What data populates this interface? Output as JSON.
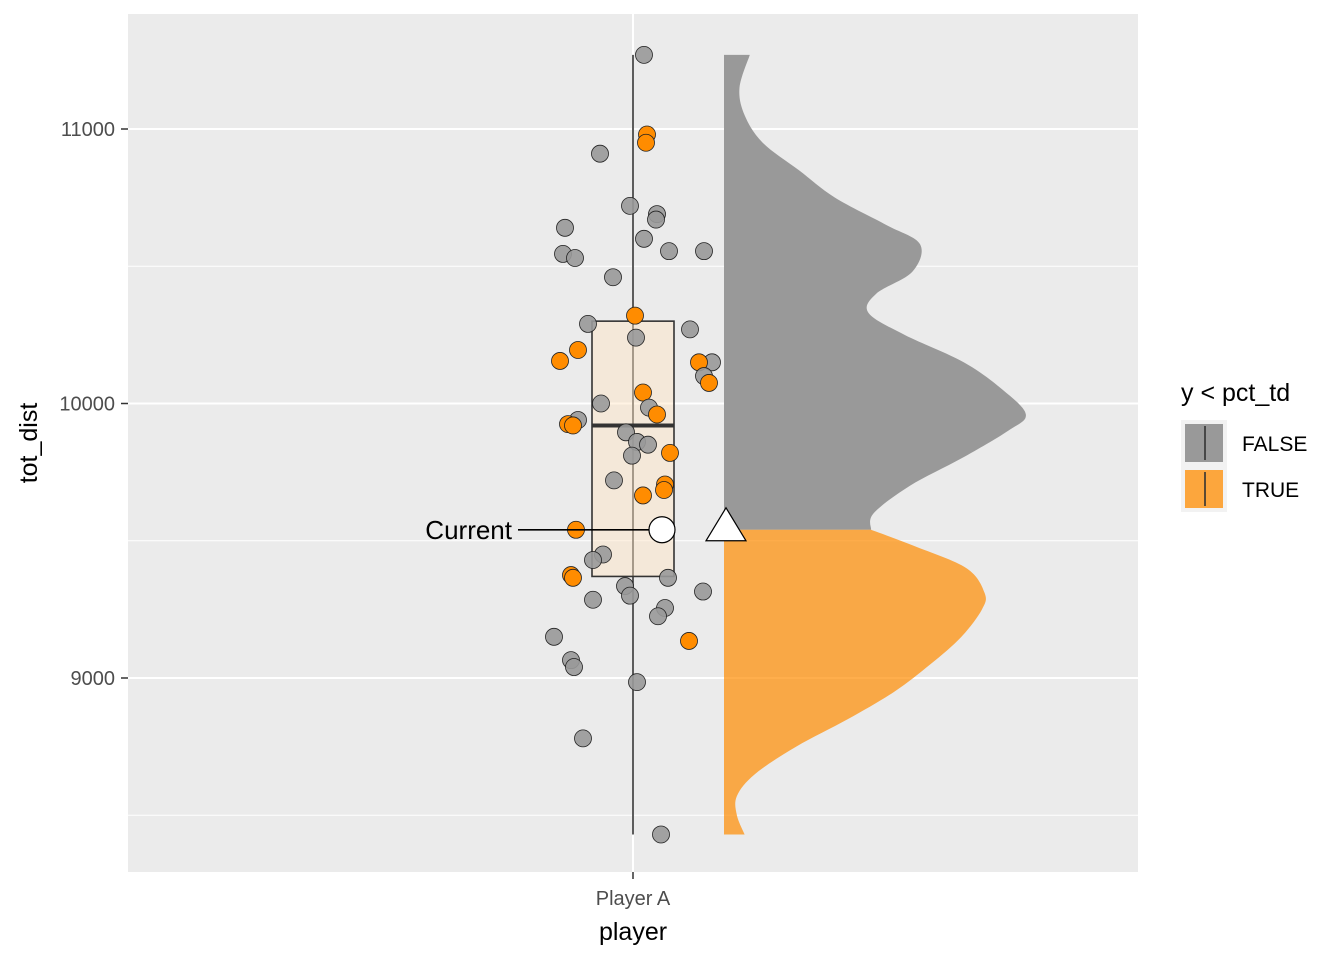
{
  "chart_data": {
    "type": "raincloud",
    "title": "",
    "xlabel": "player",
    "ylabel": "tot_dist",
    "categories": [
      "Player A"
    ],
    "ylim": [
      8300,
      11400
    ],
    "yticks": [
      9000,
      10000,
      11000
    ],
    "y_minor_gridlines": [
      8500,
      9500,
      10500
    ],
    "grid": true,
    "legend": {
      "title": "y < pct_td",
      "position": "right",
      "entries": [
        {
          "label": "FALSE",
          "color": "#999999"
        },
        {
          "label": "TRUE",
          "color": "#ff8c00"
        }
      ]
    },
    "boxplot": {
      "min": 8430,
      "q1": 9370,
      "median": 9920,
      "q3": 10300,
      "max": 11270,
      "fill": "#ffe4c4"
    },
    "current": {
      "label": "Current",
      "value": 9540
    },
    "threshold": 9540,
    "density": {
      "y": [
        8430,
        8500,
        8570,
        8650,
        8750,
        8850,
        8950,
        9050,
        9150,
        9250,
        9310,
        9400,
        9480,
        9540,
        9600,
        9700,
        9800,
        9900,
        9960,
        10050,
        10150,
        10250,
        10330,
        10400,
        10480,
        10580,
        10650,
        10750,
        10850,
        10950,
        11050,
        11150,
        11270
      ],
      "density": [
        0.08,
        0.05,
        0.05,
        0.12,
        0.28,
        0.48,
        0.66,
        0.8,
        0.92,
        1.0,
        1.01,
        0.94,
        0.74,
        0.57,
        0.58,
        0.72,
        0.92,
        1.1,
        1.17,
        1.08,
        0.93,
        0.7,
        0.56,
        0.59,
        0.73,
        0.76,
        0.63,
        0.43,
        0.29,
        0.15,
        0.08,
        0.06,
        0.1
      ]
    },
    "points": [
      {
        "y": 11270,
        "group": "FALSE"
      },
      {
        "y": 10980,
        "group": "TRUE"
      },
      {
        "y": 10950,
        "group": "TRUE"
      },
      {
        "y": 10910,
        "group": "FALSE"
      },
      {
        "y": 10720,
        "group": "FALSE"
      },
      {
        "y": 10690,
        "group": "FALSE"
      },
      {
        "y": 10670,
        "group": "FALSE"
      },
      {
        "y": 10640,
        "group": "FALSE"
      },
      {
        "y": 10600,
        "group": "FALSE"
      },
      {
        "y": 10555,
        "group": "FALSE"
      },
      {
        "y": 10555,
        "group": "FALSE"
      },
      {
        "y": 10545,
        "group": "FALSE"
      },
      {
        "y": 10530,
        "group": "FALSE"
      },
      {
        "y": 10460,
        "group": "FALSE"
      },
      {
        "y": 10320,
        "group": "TRUE"
      },
      {
        "y": 10290,
        "group": "FALSE"
      },
      {
        "y": 10270,
        "group": "FALSE"
      },
      {
        "y": 10240,
        "group": "FALSE"
      },
      {
        "y": 10195,
        "group": "TRUE"
      },
      {
        "y": 10155,
        "group": "TRUE"
      },
      {
        "y": 10150,
        "group": "FALSE"
      },
      {
        "y": 10150,
        "group": "TRUE"
      },
      {
        "y": 10100,
        "group": "FALSE"
      },
      {
        "y": 10075,
        "group": "TRUE"
      },
      {
        "y": 10040,
        "group": "TRUE"
      },
      {
        "y": 10000,
        "group": "FALSE"
      },
      {
        "y": 9985,
        "group": "FALSE"
      },
      {
        "y": 9960,
        "group": "TRUE"
      },
      {
        "y": 9940,
        "group": "FALSE"
      },
      {
        "y": 9925,
        "group": "TRUE"
      },
      {
        "y": 9920,
        "group": "TRUE"
      },
      {
        "y": 9895,
        "group": "FALSE"
      },
      {
        "y": 9860,
        "group": "FALSE"
      },
      {
        "y": 9850,
        "group": "FALSE"
      },
      {
        "y": 9820,
        "group": "TRUE"
      },
      {
        "y": 9810,
        "group": "FALSE"
      },
      {
        "y": 9720,
        "group": "FALSE"
      },
      {
        "y": 9705,
        "group": "TRUE"
      },
      {
        "y": 9685,
        "group": "TRUE"
      },
      {
        "y": 9665,
        "group": "TRUE"
      },
      {
        "y": 9540,
        "group": "TRUE"
      },
      {
        "y": 9450,
        "group": "FALSE"
      },
      {
        "y": 9430,
        "group": "FALSE"
      },
      {
        "y": 9375,
        "group": "TRUE"
      },
      {
        "y": 9365,
        "group": "TRUE"
      },
      {
        "y": 9365,
        "group": "FALSE"
      },
      {
        "y": 9335,
        "group": "FALSE"
      },
      {
        "y": 9315,
        "group": "FALSE"
      },
      {
        "y": 9300,
        "group": "FALSE"
      },
      {
        "y": 9285,
        "group": "FALSE"
      },
      {
        "y": 9255,
        "group": "FALSE"
      },
      {
        "y": 9225,
        "group": "FALSE"
      },
      {
        "y": 9150,
        "group": "FALSE"
      },
      {
        "y": 9135,
        "group": "TRUE"
      },
      {
        "y": 9065,
        "group": "FALSE"
      },
      {
        "y": 9040,
        "group": "FALSE"
      },
      {
        "y": 8985,
        "group": "FALSE"
      },
      {
        "y": 8780,
        "group": "FALSE"
      },
      {
        "y": 8430,
        "group": "FALSE"
      }
    ]
  }
}
